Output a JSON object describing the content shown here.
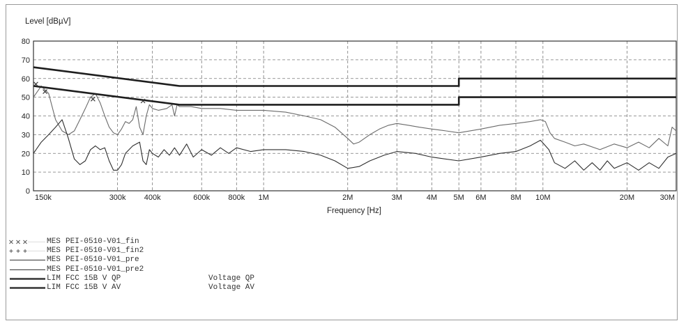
{
  "chart_data": {
    "type": "line",
    "ylabel": "Level [dBµV]",
    "xlabel": "Frequency [Hz]",
    "x_scale": "log",
    "xlim": [
      150000,
      30000000
    ],
    "ylim": [
      0,
      80
    ],
    "grid": true,
    "yticks": [
      0,
      10,
      20,
      30,
      40,
      50,
      60,
      70,
      80
    ],
    "xticks": [
      {
        "value": 150000,
        "label": "150k"
      },
      {
        "value": 300000,
        "label": "300k"
      },
      {
        "value": 400000,
        "label": "400k"
      },
      {
        "value": 600000,
        "label": "600k"
      },
      {
        "value": 800000,
        "label": "800k"
      },
      {
        "value": 1000000,
        "label": "1M"
      },
      {
        "value": 2000000,
        "label": "2M"
      },
      {
        "value": 3000000,
        "label": "3M"
      },
      {
        "value": 4000000,
        "label": "4M"
      },
      {
        "value": 5000000,
        "label": "5M"
      },
      {
        "value": 6000000,
        "label": "6M"
      },
      {
        "value": 8000000,
        "label": "8M"
      },
      {
        "value": 10000000,
        "label": "10M"
      },
      {
        "value": 20000000,
        "label": "20M"
      },
      {
        "value": 30000000,
        "label": "30M"
      }
    ],
    "series": [
      {
        "name": "PEI-0510-V01_pre",
        "kind": "trace",
        "color": "#6a6a6a",
        "width": 1.1,
        "points": [
          [
            150000,
            50
          ],
          [
            160000,
            56
          ],
          [
            170000,
            52
          ],
          [
            180000,
            38
          ],
          [
            190000,
            32
          ],
          [
            200000,
            30
          ],
          [
            210000,
            32
          ],
          [
            220000,
            38
          ],
          [
            230000,
            44
          ],
          [
            240000,
            50
          ],
          [
            250000,
            52
          ],
          [
            260000,
            47
          ],
          [
            270000,
            40
          ],
          [
            280000,
            34
          ],
          [
            290000,
            31
          ],
          [
            300000,
            30
          ],
          [
            310000,
            33
          ],
          [
            320000,
            37
          ],
          [
            330000,
            36
          ],
          [
            340000,
            38
          ],
          [
            350000,
            45
          ],
          [
            360000,
            34
          ],
          [
            370000,
            30
          ],
          [
            380000,
            40
          ],
          [
            390000,
            46
          ],
          [
            400000,
            44
          ],
          [
            420000,
            43
          ],
          [
            450000,
            44
          ],
          [
            470000,
            46
          ],
          [
            480000,
            40
          ],
          [
            490000,
            46
          ],
          [
            500000,
            45
          ],
          [
            550000,
            45
          ],
          [
            600000,
            44
          ],
          [
            700000,
            44
          ],
          [
            800000,
            43
          ],
          [
            900000,
            43
          ],
          [
            1000000,
            43
          ],
          [
            1200000,
            42
          ],
          [
            1400000,
            40
          ],
          [
            1600000,
            38
          ],
          [
            1800000,
            34
          ],
          [
            2000000,
            28
          ],
          [
            2100000,
            25
          ],
          [
            2200000,
            26
          ],
          [
            2400000,
            30
          ],
          [
            2600000,
            33
          ],
          [
            2800000,
            35
          ],
          [
            3000000,
            36
          ],
          [
            3300000,
            35
          ],
          [
            3600000,
            34
          ],
          [
            4000000,
            33
          ],
          [
            4500000,
            32
          ],
          [
            5000000,
            31
          ],
          [
            6000000,
            33
          ],
          [
            7000000,
            35
          ],
          [
            8000000,
            36
          ],
          [
            9000000,
            37
          ],
          [
            9800000,
            38
          ],
          [
            10200000,
            37
          ],
          [
            10600000,
            31
          ],
          [
            11000000,
            28
          ],
          [
            12000000,
            26
          ],
          [
            13000000,
            24
          ],
          [
            14000000,
            25
          ],
          [
            16000000,
            22
          ],
          [
            18000000,
            25
          ],
          [
            20000000,
            23
          ],
          [
            22000000,
            26
          ],
          [
            24000000,
            23
          ],
          [
            26000000,
            28
          ],
          [
            28000000,
            24
          ],
          [
            29000000,
            34
          ],
          [
            30000000,
            32
          ]
        ]
      },
      {
        "name": "PEI-0510-V01_pre2",
        "kind": "trace",
        "color": "#2e2e2e",
        "width": 1.1,
        "points": [
          [
            150000,
            20
          ],
          [
            160000,
            26
          ],
          [
            170000,
            30
          ],
          [
            180000,
            34
          ],
          [
            190000,
            38
          ],
          [
            200000,
            28
          ],
          [
            210000,
            17
          ],
          [
            220000,
            14
          ],
          [
            230000,
            16
          ],
          [
            240000,
            22
          ],
          [
            250000,
            24
          ],
          [
            260000,
            22
          ],
          [
            270000,
            23
          ],
          [
            280000,
            16
          ],
          [
            290000,
            11
          ],
          [
            300000,
            11
          ],
          [
            310000,
            14
          ],
          [
            320000,
            20
          ],
          [
            340000,
            24
          ],
          [
            360000,
            26
          ],
          [
            370000,
            16
          ],
          [
            380000,
            14
          ],
          [
            390000,
            22
          ],
          [
            400000,
            20
          ],
          [
            420000,
            18
          ],
          [
            440000,
            22
          ],
          [
            460000,
            19
          ],
          [
            480000,
            23
          ],
          [
            500000,
            19
          ],
          [
            530000,
            25
          ],
          [
            560000,
            18
          ],
          [
            600000,
            22
          ],
          [
            650000,
            19
          ],
          [
            700000,
            23
          ],
          [
            750000,
            20
          ],
          [
            800000,
            23
          ],
          [
            900000,
            21
          ],
          [
            1000000,
            22
          ],
          [
            1200000,
            22
          ],
          [
            1400000,
            21
          ],
          [
            1600000,
            19
          ],
          [
            1800000,
            16
          ],
          [
            2000000,
            12
          ],
          [
            2200000,
            13
          ],
          [
            2400000,
            16
          ],
          [
            2700000,
            19
          ],
          [
            3000000,
            21
          ],
          [
            3500000,
            20
          ],
          [
            4000000,
            18
          ],
          [
            5000000,
            16
          ],
          [
            6000000,
            18
          ],
          [
            7000000,
            20
          ],
          [
            8000000,
            21
          ],
          [
            9000000,
            24
          ],
          [
            9800000,
            27
          ],
          [
            10500000,
            22
          ],
          [
            11000000,
            15
          ],
          [
            12000000,
            12
          ],
          [
            13000000,
            16
          ],
          [
            14000000,
            11
          ],
          [
            15000000,
            15
          ],
          [
            16000000,
            11
          ],
          [
            17000000,
            16
          ],
          [
            18000000,
            12
          ],
          [
            20000000,
            15
          ],
          [
            22000000,
            11
          ],
          [
            24000000,
            15
          ],
          [
            26000000,
            12
          ],
          [
            28000000,
            18
          ],
          [
            30000000,
            20
          ]
        ]
      },
      {
        "name": "FCC 15B V QP",
        "kind": "limit",
        "color": "#1e1e1e",
        "width": 2.6,
        "points": [
          [
            150000,
            66
          ],
          [
            500000,
            56
          ],
          [
            5000000,
            56
          ],
          [
            5000000,
            60
          ],
          [
            30000000,
            60
          ]
        ]
      },
      {
        "name": "FCC 15B V AV",
        "kind": "limit",
        "color": "#1e1e1e",
        "width": 2.6,
        "points": [
          [
            150000,
            56
          ],
          [
            500000,
            46
          ],
          [
            5000000,
            46
          ],
          [
            5000000,
            50
          ],
          [
            30000000,
            50
          ]
        ]
      },
      {
        "name": "PEI-0510-V01_fin",
        "kind": "marker",
        "symbol": "x",
        "points": [
          [
            153000,
            57
          ],
          [
            165000,
            53
          ],
          [
            245000,
            49
          ],
          [
            370000,
            48
          ]
        ]
      }
    ]
  },
  "legend": [
    {
      "symbol": "x",
      "type": "MES",
      "name": "PEI-0510-V01_fin",
      "desc": ""
    },
    {
      "symbol": "+",
      "type": "MES",
      "name": "PEI-0510-V01_fin2",
      "desc": ""
    },
    {
      "symbol": "thin",
      "type": "MES",
      "name": "PEI-0510-V01_pre",
      "desc": ""
    },
    {
      "symbol": "thin",
      "type": "MES",
      "name": "PEI-0510-V01_pre2",
      "desc": ""
    },
    {
      "symbol": "thick",
      "type": "LIM",
      "name": "FCC 15B V QP",
      "desc": "Voltage QP"
    },
    {
      "symbol": "thick",
      "type": "LIM",
      "name": "FCC 15B V AV",
      "desc": "Voltage AV"
    }
  ]
}
